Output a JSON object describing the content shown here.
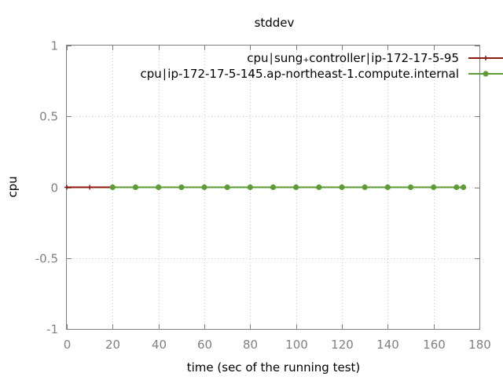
{
  "chart_data": {
    "type": "line",
    "title": "stddev",
    "xlabel": "time (sec of the running test)",
    "ylabel": "cpu",
    "xlim": [
      0,
      180
    ],
    "ylim": [
      -1,
      1
    ],
    "xticks": [
      0,
      20,
      40,
      60,
      80,
      100,
      120,
      140,
      160,
      180
    ],
    "xtick_labels": [
      "0",
      "20",
      "40",
      "60",
      "80",
      "100",
      "120",
      "140",
      "160",
      "180"
    ],
    "yticks": [
      1,
      0.5,
      0,
      -0.5,
      -1
    ],
    "ytick_labels": [
      "1",
      "0.5",
      "0",
      "-0.5",
      "-1"
    ],
    "grid": true,
    "legend_position": "top-right",
    "series": [
      {
        "name": "cpu: sung_controller: ip-172-17-5-95",
        "legend_text": "cpu∣sung₊controller∣ip-172-17-5-95",
        "color": "#8b1a0e",
        "marker": "plus",
        "x": [
          0,
          10,
          20,
          30,
          40,
          50,
          60,
          70,
          80,
          90,
          100,
          110,
          120,
          130,
          140,
          150,
          160,
          170,
          173
        ],
        "y": [
          0,
          0,
          0,
          0,
          0,
          0,
          0,
          0,
          0,
          0,
          0,
          0,
          0,
          0,
          0,
          0,
          0,
          0,
          0
        ]
      },
      {
        "name": "cpu: ip-172-17-5-145.ap-northeast-1.compute.internal",
        "legend_text": "cpu∣ip-172-17-5-145.ap-northeast-1.compute.internal",
        "color": "#5e9c36",
        "marker": "circle",
        "x": [
          20,
          30,
          40,
          50,
          60,
          70,
          80,
          90,
          100,
          110,
          120,
          130,
          140,
          150,
          160,
          170,
          173
        ],
        "y": [
          0,
          0,
          0,
          0,
          0,
          0,
          0,
          0,
          0,
          0,
          0,
          0,
          0,
          0,
          0,
          0,
          0
        ]
      }
    ]
  }
}
